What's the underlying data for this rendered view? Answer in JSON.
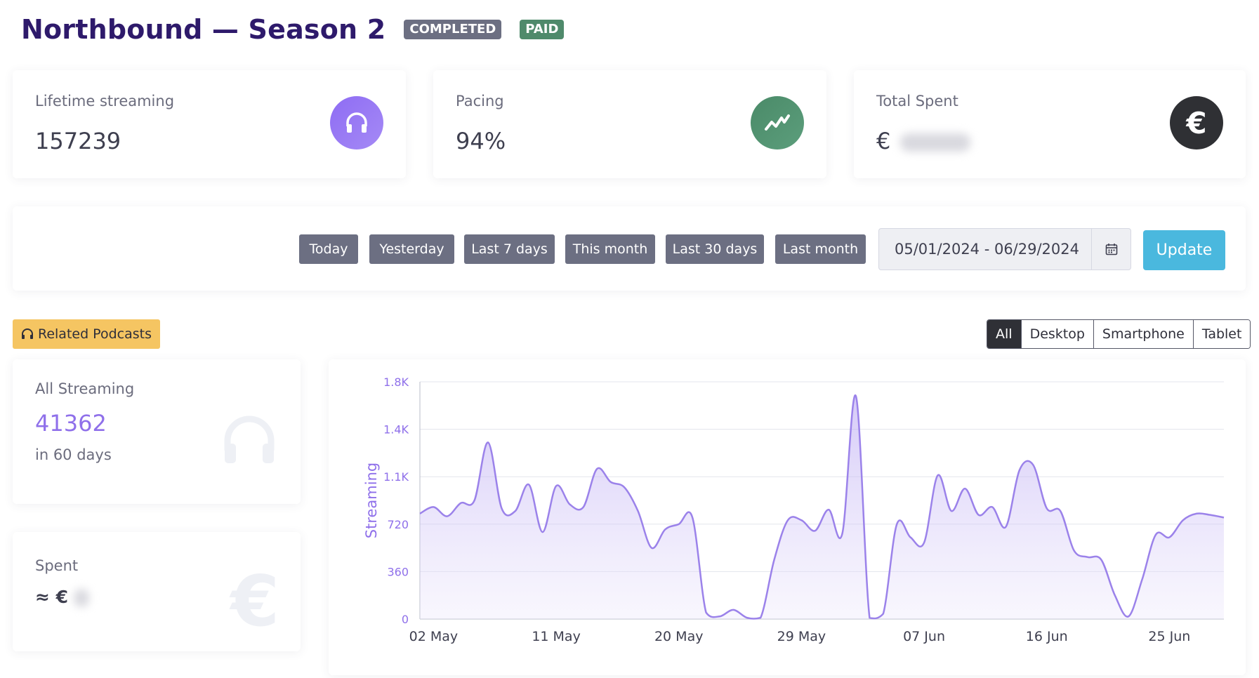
{
  "header": {
    "title": "Northbound — Season 2",
    "badges": [
      "COMPLETED",
      "PAID"
    ]
  },
  "stats": [
    {
      "label": "Lifetime streaming",
      "value": "157239",
      "icon": "headphones-icon"
    },
    {
      "label": "Pacing",
      "value": "94%",
      "icon": "trend-up-icon"
    },
    {
      "label": "Total Spent",
      "value": "€",
      "icon": "euro-icon"
    }
  ],
  "filters": {
    "quick": [
      "Today",
      "Yesterday",
      "Last 7 days",
      "This month",
      "Last 30 days",
      "Last month"
    ],
    "date_range": "05/01/2024 - 06/29/2024",
    "update_label": "Update"
  },
  "related_label": "Related Podcasts",
  "device_tabs": [
    "All",
    "Desktop",
    "Smartphone",
    "Tablet"
  ],
  "all_streaming": {
    "label": "All Streaming",
    "value": "41362",
    "sub": "in 60 days"
  },
  "spent": {
    "label": "Spent",
    "value": "≈ €"
  },
  "chart_data": {
    "type": "area",
    "ylabel": "Streaming",
    "yticks": [
      "0",
      "360",
      "720",
      "1.1K",
      "1.4K",
      "1.8K"
    ],
    "ylim": [
      0,
      1800
    ],
    "xtick_labels": [
      "02 May",
      "11 May",
      "20 May",
      "29 May",
      "07 Jun",
      "16 Jun",
      "25 Jun"
    ],
    "color": "#9b82ea",
    "x": [
      "01 May",
      "02 May",
      "03 May",
      "04 May",
      "05 May",
      "06 May",
      "07 May",
      "08 May",
      "09 May",
      "10 May",
      "11 May",
      "12 May",
      "13 May",
      "14 May",
      "15 May",
      "16 May",
      "17 May",
      "18 May",
      "19 May",
      "20 May",
      "21 May",
      "22 May",
      "23 May",
      "24 May",
      "25 May",
      "26 May",
      "27 May",
      "28 May",
      "29 May",
      "30 May",
      "31 May",
      "01 Jun",
      "02 Jun",
      "03 Jun",
      "04 Jun",
      "05 Jun",
      "06 Jun",
      "07 Jun",
      "08 Jun",
      "09 Jun",
      "10 Jun",
      "11 Jun",
      "12 Jun",
      "13 Jun",
      "14 Jun",
      "15 Jun",
      "16 Jun",
      "17 Jun",
      "18 Jun",
      "19 Jun",
      "20 Jun",
      "21 Jun",
      "22 Jun",
      "23 Jun",
      "24 Jun",
      "25 Jun",
      "26 Jun",
      "27 Jun",
      "28 Jun",
      "29 Jun"
    ],
    "values": [
      800,
      850,
      780,
      880,
      900,
      1340,
      840,
      820,
      1020,
      660,
      1010,
      870,
      850,
      1140,
      1040,
      1000,
      820,
      540,
      680,
      720,
      770,
      50,
      20,
      70,
      10,
      10,
      450,
      750,
      750,
      670,
      830,
      650,
      1690,
      10,
      40,
      720,
      620,
      580,
      1090,
      820,
      990,
      790,
      850,
      700,
      1130,
      1170,
      840,
      820,
      520,
      470,
      450,
      180,
      20,
      300,
      640,
      620,
      750,
      800,
      790,
      770
    ]
  }
}
